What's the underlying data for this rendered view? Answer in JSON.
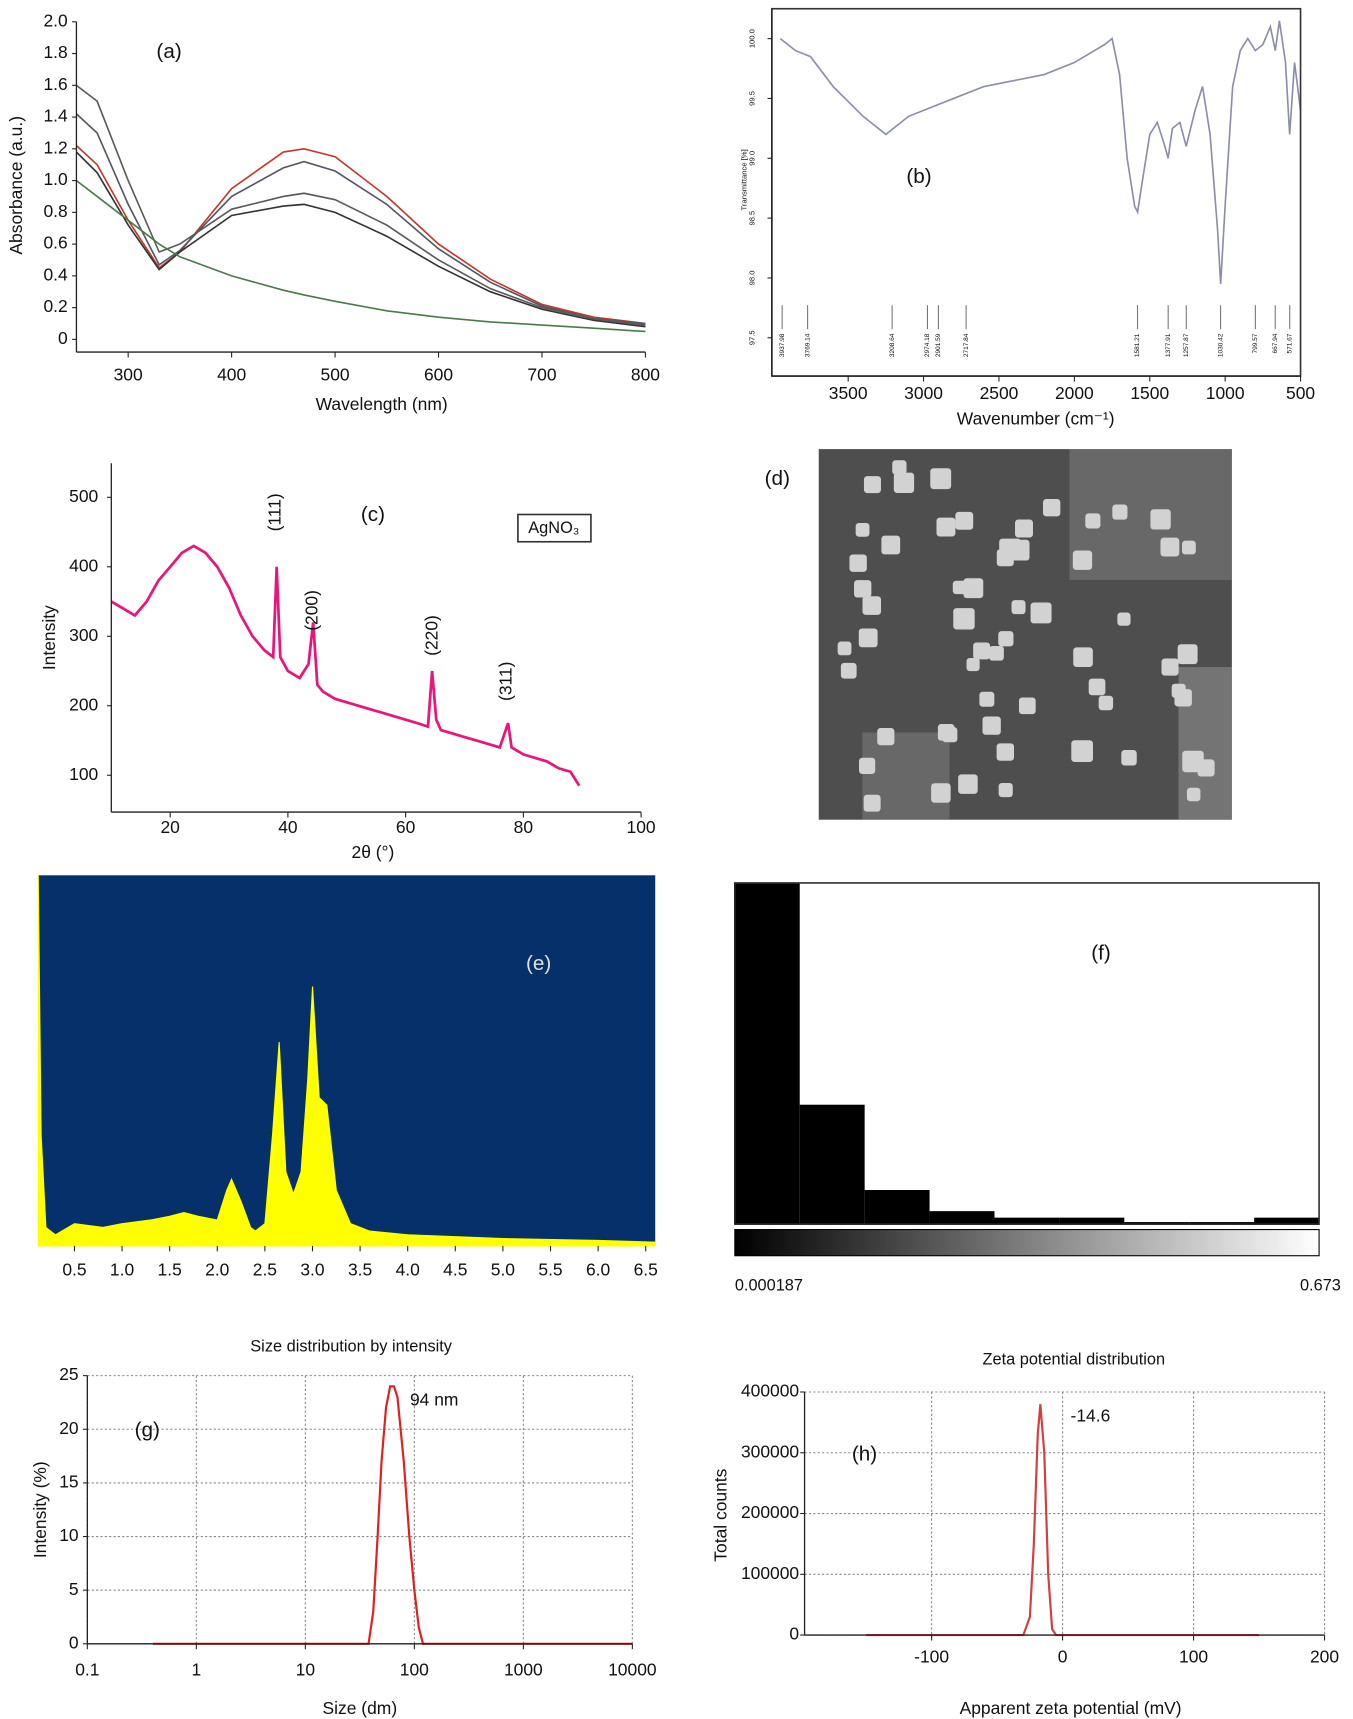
{
  "chart_data": [
    {
      "type": "line",
      "panel_label": "(a)",
      "xlabel": "Wavelength (nm)",
      "ylabel": "Absorbance (a.u.)",
      "x": [
        250,
        270,
        300,
        330,
        350,
        400,
        450,
        470,
        500,
        550,
        600,
        650,
        700,
        750,
        800
      ],
      "series": [
        {
          "color": "#c0392b",
          "values": [
            1.22,
            1.1,
            0.75,
            0.45,
            0.55,
            0.95,
            1.18,
            1.2,
            1.15,
            0.9,
            0.6,
            0.38,
            0.22,
            0.14,
            0.1
          ]
        },
        {
          "color": "#555566",
          "values": [
            1.42,
            1.3,
            0.85,
            0.47,
            0.56,
            0.9,
            1.08,
            1.12,
            1.06,
            0.85,
            0.57,
            0.36,
            0.21,
            0.13,
            0.1
          ]
        },
        {
          "color": "#5a5a5a",
          "values": [
            1.6,
            1.5,
            1.0,
            0.55,
            0.6,
            0.82,
            0.9,
            0.92,
            0.88,
            0.72,
            0.5,
            0.32,
            0.2,
            0.13,
            0.09
          ]
        },
        {
          "color": "#333333",
          "values": [
            1.18,
            1.05,
            0.72,
            0.44,
            0.55,
            0.78,
            0.84,
            0.85,
            0.8,
            0.65,
            0.46,
            0.3,
            0.19,
            0.12,
            0.08
          ]
        },
        {
          "color": "#4a7a4a",
          "values": [
            1.0,
            0.9,
            0.75,
            0.6,
            0.52,
            0.4,
            0.31,
            0.28,
            0.24,
            0.18,
            0.14,
            0.11,
            0.09,
            0.07,
            0.05
          ]
        }
      ],
      "xlim": [
        250,
        800
      ],
      "ylim": [
        -0.08,
        2.0
      ],
      "xticks": [
        300,
        400,
        500,
        600,
        700,
        800
      ],
      "yticks": [
        0,
        0.2,
        0.4,
        0.6,
        0.8,
        {
          "value": 1,
          "label": "1.0"
        },
        1.2,
        1.4,
        1.6,
        1.8,
        {
          "value": 2,
          "label": "2.0"
        }
      ]
    },
    {
      "type": "line",
      "panel_label": "(b)",
      "xlabel": "Wavenumber (cm⁻¹)",
      "ylabel": "Transmittance [%]",
      "x": [
        3950,
        3850,
        3750,
        3600,
        3400,
        3250,
        3200,
        3100,
        3000,
        2900,
        2800,
        2600,
        2400,
        2200,
        2000,
        1800,
        1750,
        1700,
        1650,
        1600,
        1581,
        1550,
        1500,
        1450,
        1400,
        1378,
        1350,
        1300,
        1258,
        1200,
        1150,
        1100,
        1050,
        1030,
        1000,
        950,
        900,
        850,
        800,
        750,
        700,
        668,
        640,
        600,
        572,
        540,
        500
      ],
      "series": [
        {
          "color": "#8a8ea8",
          "values": [
            100,
            99.9,
            99.85,
            99.6,
            99.35,
            99.2,
            99.25,
            99.35,
            99.4,
            99.45,
            99.5,
            99.6,
            99.65,
            99.7,
            99.8,
            99.95,
            100,
            99.7,
            99.0,
            98.6,
            98.55,
            98.8,
            99.2,
            99.3,
            99.1,
            99.0,
            99.25,
            99.3,
            99.1,
            99.4,
            99.6,
            99.2,
            98.4,
            97.95,
            98.6,
            99.6,
            99.9,
            100,
            99.9,
            99.95,
            100.1,
            99.9,
            100.15,
            99.8,
            99.2,
            99.8,
            99.4
          ]
        }
      ],
      "peaks": [
        3937.98,
        3769.14,
        3208.64,
        2974.18,
        2901.59,
        2717.84,
        1581.21,
        1377.91,
        1257.87,
        1030.42,
        799.57,
        667.94,
        571.67
      ],
      "xlim": [
        4006,
        500
      ],
      "ylim": [
        97.18,
        100.25
      ],
      "xticks": [
        3500,
        3000,
        2500,
        2000,
        1500,
        1000,
        500
      ],
      "yticks": [
        97.5,
        {
          "value": 98,
          "label": "98.0"
        },
        98.5,
        {
          "value": 99,
          "label": "99.0"
        },
        99.5,
        {
          "value": 100,
          "label": "100.0"
        }
      ]
    },
    {
      "type": "line",
      "panel_label": "(c)",
      "xlabel": "2θ (°)",
      "ylabel": "Intensity",
      "legend": "upper right",
      "annotations": [
        "(111)",
        "(200)",
        "(220)",
        "(311)"
      ],
      "x": [
        10,
        12,
        14,
        16,
        18,
        20,
        22,
        24,
        26,
        28,
        30,
        32,
        34,
        36,
        37.5,
        38.1,
        38.7,
        40,
        42,
        43.5,
        44.3,
        45,
        46,
        48,
        50,
        52,
        54,
        56,
        58,
        60,
        62,
        63.8,
        64.5,
        65.2,
        66,
        68,
        70,
        72,
        74,
        76,
        77.4,
        78,
        80,
        82,
        84,
        86,
        88,
        89.5
      ],
      "series": [
        {
          "name": "AgNO₃",
          "color": "#e8167a",
          "values": [
            350,
            340,
            330,
            350,
            380,
            400,
            420,
            430,
            420,
            400,
            370,
            330,
            300,
            280,
            270,
            400,
            270,
            250,
            240,
            260,
            320,
            230,
            220,
            210,
            205,
            200,
            195,
            190,
            185,
            180,
            175,
            170,
            250,
            180,
            165,
            160,
            155,
            150,
            145,
            140,
            175,
            140,
            130,
            125,
            120,
            110,
            105,
            85
          ]
        }
      ],
      "xlim": [
        10,
        100
      ],
      "ylim": [
        47,
        549
      ],
      "xticks": [
        20,
        40,
        60,
        80,
        100
      ],
      "yticks": [
        100,
        200,
        300,
        400,
        500
      ]
    },
    {
      "type": "image",
      "panel_label": "(d)"
    },
    {
      "type": "area",
      "panel_label": "(e)",
      "color": "#ffff00",
      "background": "#06306a",
      "x": [
        0.12,
        0.15,
        0.2,
        0.3,
        0.5,
        0.8,
        1.0,
        1.3,
        1.5,
        1.65,
        1.8,
        2.0,
        2.1,
        2.15,
        2.25,
        2.35,
        2.4,
        2.5,
        2.58,
        2.65,
        2.72,
        2.8,
        2.88,
        2.95,
        3.0,
        3.07,
        3.15,
        3.25,
        3.4,
        3.6,
        4.0,
        5.0,
        6.0,
        6.6
      ],
      "values": [
        100,
        30,
        5,
        3,
        6,
        5,
        6,
        7,
        8,
        9,
        8,
        7,
        15,
        18,
        12,
        5,
        4,
        6,
        30,
        55,
        20,
        14,
        20,
        45,
        70,
        40,
        38,
        15,
        6,
        4,
        3,
        2,
        1.5,
        1
      ],
      "xlim": [
        0.12,
        6.6
      ],
      "ylim": [
        0,
        100
      ],
      "xticks": [
        0.5,
        {
          "value": 1,
          "label": "1.0"
        },
        1.5,
        {
          "value": 2,
          "label": "2.0"
        },
        2.5,
        {
          "value": 3,
          "label": "3.0"
        },
        3.5,
        {
          "value": 4,
          "label": "4.0"
        },
        4.5,
        {
          "value": 5,
          "label": "5.0"
        },
        5.5,
        {
          "value": 6,
          "label": "6.0"
        },
        6.5
      ]
    },
    {
      "type": "histogram",
      "panel_label": "(f)",
      "color": "#000000",
      "bins": [
        0.000187,
        0.074944,
        0.149702,
        0.224459,
        0.299217,
        0.373974,
        0.448731,
        0.523489,
        0.598246,
        0.673
      ],
      "counts": [
        100,
        35,
        10,
        3.8,
        1.9,
        1.9,
        0.6,
        0.6,
        1.9
      ],
      "ylim": [
        0,
        100
      ]
    },
    {
      "type": "line",
      "panel_label": "(g)",
      "title": "Size distribution by intensity",
      "xlabel": "Size (dm)",
      "ylabel": "Intensity (%)",
      "annotations": [
        "94 nm"
      ],
      "log_x": true,
      "grid": true,
      "color": "#e02020",
      "x": [
        0.4,
        1,
        10,
        30,
        38,
        42,
        46,
        50,
        55,
        60,
        65,
        70,
        80,
        90,
        100,
        110,
        120,
        1000,
        10000
      ],
      "values": [
        0,
        0,
        0,
        0,
        0,
        3,
        10,
        17,
        22,
        24,
        24,
        23,
        17,
        10,
        5,
        1.5,
        0,
        0,
        0
      ],
      "xlim": [
        0.1,
        10000
      ],
      "ylim": [
        0,
        25
      ],
      "xticks": [
        0.1,
        1,
        10,
        100,
        1000,
        10000
      ],
      "yticks": [
        0,
        5,
        10,
        15,
        20,
        25
      ]
    },
    {
      "type": "line",
      "panel_label": "(h)",
      "title": "Zeta potential distribution",
      "xlabel": "Apparent zeta potential (mV)",
      "ylabel": "Total counts",
      "annotations": [
        "-14.6"
      ],
      "grid": true,
      "color": "#d04040",
      "x": [
        -150,
        -30,
        -25,
        -22,
        -19,
        -17,
        -14,
        -11,
        -8,
        -5,
        150
      ],
      "values": [
        0,
        0,
        30000,
        150000,
        330000,
        380000,
        300000,
        100000,
        10000,
        0,
        0
      ],
      "xlim": [
        -197,
        200
      ],
      "ylim": [
        0,
        400000
      ],
      "xticks": [
        -100,
        0,
        100,
        200
      ],
      "yticks": [
        0,
        100000,
        200000,
        300000,
        400000
      ]
    }
  ]
}
